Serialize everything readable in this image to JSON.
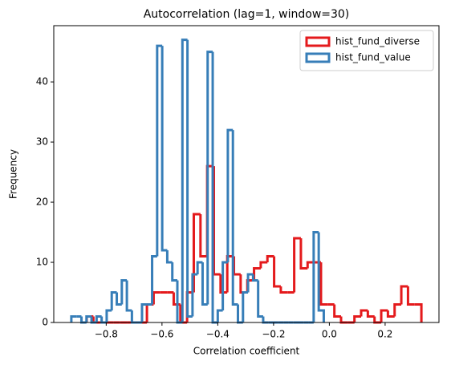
{
  "chart_data": {
    "type": "histogram",
    "title": "Autocorrelation (lag=1, window=30)",
    "xlabel": "Correlation coefficient",
    "ylabel": "Frequency",
    "histtype": "step",
    "legend": "upper right",
    "xlim": [
      -0.988,
      0.393
    ],
    "ylim": [
      0,
      49.35
    ],
    "xticks": [
      {
        "value": -0.8,
        "label": "−0.8"
      },
      {
        "value": -0.6,
        "label": "−0.6"
      },
      {
        "value": -0.4,
        "label": "−0.4"
      },
      {
        "value": -0.2,
        "label": "−0.2"
      },
      {
        "value": 0,
        "label": "0.0"
      },
      0.2
    ],
    "yticks": [
      0,
      10,
      20,
      30,
      40
    ],
    "series": [
      {
        "name": "hist_fund_diverse",
        "color": "#e41a1c",
        "bins": [
          -0.87,
          -0.846,
          -0.822,
          -0.798,
          -0.774,
          -0.75,
          -0.726,
          -0.702,
          -0.678,
          -0.654,
          -0.63,
          -0.606,
          -0.582,
          -0.558,
          -0.534,
          -0.51,
          -0.486,
          -0.462,
          -0.438,
          -0.414,
          -0.39,
          -0.366,
          -0.342,
          -0.318,
          -0.294,
          -0.27,
          -0.246,
          -0.222,
          -0.198,
          -0.174,
          -0.15,
          -0.126,
          -0.102,
          -0.078,
          -0.054,
          -0.03,
          -0.006,
          0.018,
          0.042,
          0.066,
          0.09,
          0.114,
          0.138,
          0.162,
          0.186,
          0.21,
          0.234,
          0.258,
          0.282,
          0.306,
          0.33
        ],
        "values": [
          1,
          0,
          0,
          0,
          0,
          0,
          0,
          0,
          0,
          3,
          5,
          5,
          5,
          3,
          0,
          5,
          18,
          11,
          26,
          8,
          5,
          11,
          8,
          5,
          7,
          9,
          10,
          11,
          6,
          5,
          5,
          14,
          9,
          10,
          10,
          3,
          3,
          1,
          0,
          0,
          1,
          2,
          1,
          0,
          2,
          1,
          3,
          6,
          3,
          3
        ]
      },
      {
        "name": "hist_fund_value",
        "color": "#377eb8",
        "bins": [
          -0.925,
          -0.9069,
          -0.8888,
          -0.8707,
          -0.8526,
          -0.8345,
          -0.8164,
          -0.7983,
          -0.7802,
          -0.7621,
          -0.744,
          -0.7259,
          -0.7078,
          -0.6897,
          -0.6716,
          -0.6535,
          -0.6354,
          -0.6173,
          -0.5992,
          -0.5811,
          -0.563,
          -0.5449,
          -0.5268,
          -0.5087,
          -0.4906,
          -0.4725,
          -0.4544,
          -0.4363,
          -0.4182,
          -0.4001,
          -0.382,
          -0.3639,
          -0.3458,
          -0.3277,
          -0.3096,
          -0.2915,
          -0.2734,
          -0.2553,
          -0.2372,
          -0.2191,
          -0.201,
          -0.1829,
          -0.1648,
          -0.1467,
          -0.1286,
          -0.1105,
          -0.0924,
          -0.0743,
          -0.0562,
          -0.0381,
          -0.02
        ],
        "values": [
          1,
          1,
          0,
          1,
          0,
          1,
          0,
          2,
          5,
          3,
          7,
          2,
          0,
          0,
          3,
          3,
          11,
          46,
          12,
          10,
          7,
          0,
          47,
          1,
          8,
          10,
          3,
          45,
          0,
          2,
          10,
          32,
          3,
          0,
          5,
          8,
          7,
          1,
          0,
          0,
          0,
          0,
          0,
          0,
          0,
          0,
          0,
          0,
          15,
          2
        ]
      }
    ]
  }
}
